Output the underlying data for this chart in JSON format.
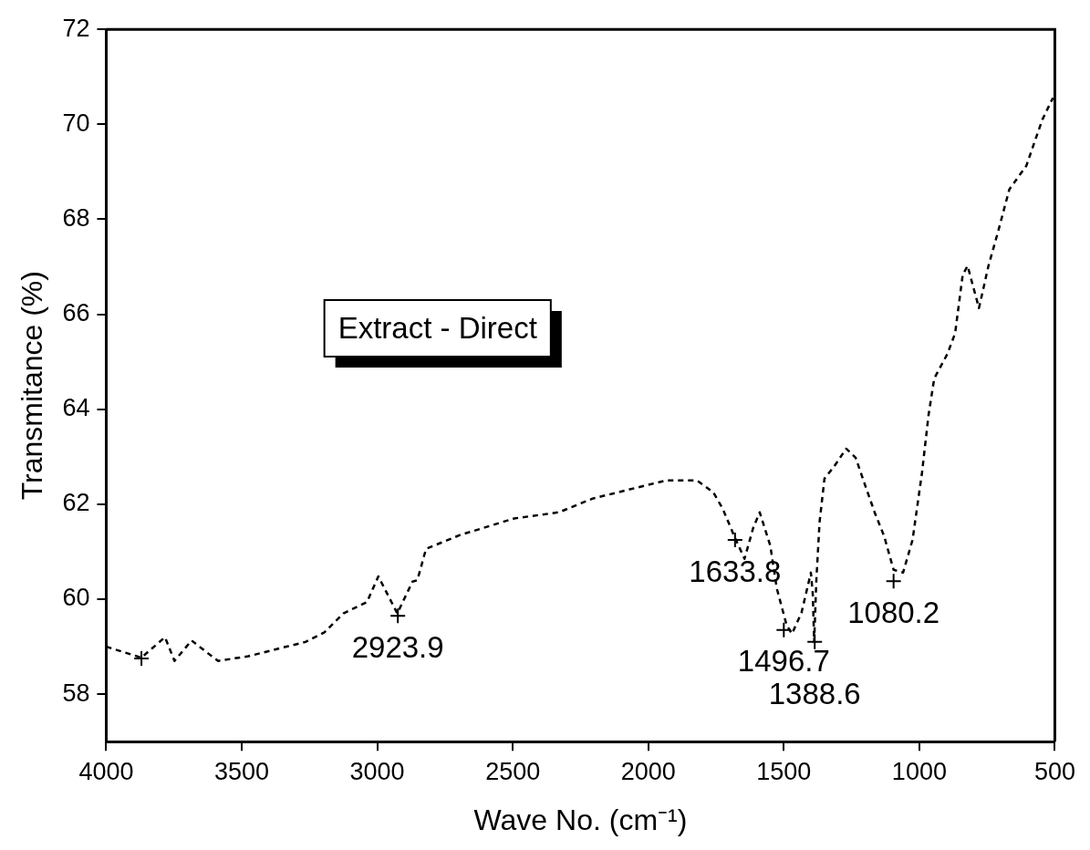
{
  "chart_data": {
    "type": "line",
    "xlabel": "Wave No. (cm⁻¹)",
    "ylabel": "Transmitance (%)",
    "xlim": [
      4000,
      500
    ],
    "xticks": [
      4000,
      3500,
      3000,
      2500,
      2000,
      1500,
      1000,
      500
    ],
    "ylim": [
      57,
      72
    ],
    "yticks": [
      58,
      60,
      62,
      64,
      66,
      68,
      70,
      72
    ],
    "grid": false,
    "line_style": "dashed",
    "series": [
      {
        "color": "#000000",
        "marker": "none",
        "x": [
          4000,
          3870,
          3783,
          3748,
          3685,
          3622,
          3587,
          3475,
          3335,
          3265,
          3195,
          3125,
          3038,
          2996,
          2926,
          2870,
          2852,
          2820,
          2695,
          2495,
          2330,
          2205,
          1935,
          1820,
          1760,
          1725,
          1680,
          1645,
          1613,
          1589,
          1550,
          1526,
          1490,
          1470,
          1435,
          1400,
          1393,
          1388,
          1380,
          1368,
          1350,
          1315,
          1270,
          1235,
          1200,
          1165,
          1130,
          1095,
          1060,
          1025,
          990,
          966,
          945,
          896,
          868,
          840,
          822,
          780,
          745,
          710,
          668,
          605,
          570,
          546,
          507
        ],
        "values": [
          59.0,
          58.77,
          59.2,
          58.7,
          59.13,
          58.85,
          58.7,
          58.8,
          59.0,
          59.1,
          59.3,
          59.7,
          59.94,
          60.48,
          59.7,
          60.37,
          60.4,
          61.06,
          61.35,
          61.7,
          61.83,
          62.12,
          62.5,
          62.5,
          62.25,
          61.9,
          61.29,
          60.85,
          61.5,
          61.83,
          61.13,
          60.23,
          59.46,
          59.27,
          59.71,
          60.56,
          60.1,
          59.1,
          60.4,
          61.63,
          62.54,
          62.79,
          63.17,
          62.98,
          62.4,
          61.83,
          61.33,
          60.62,
          60.56,
          61.25,
          62.67,
          63.88,
          64.65,
          65.17,
          65.6,
          66.83,
          67.02,
          66.13,
          67.02,
          67.73,
          68.63,
          69.13,
          69.71,
          70.1,
          70.56
        ]
      },
      {
        "type": "scatter",
        "color": "#000000",
        "marker": "cross",
        "x": [
          3870,
          2924,
          1680,
          1500,
          1386,
          1095
        ],
        "values": [
          58.75,
          59.65,
          61.25,
          59.35,
          59.1,
          60.38
        ]
      }
    ],
    "annotations": [
      "Extract - Direct",
      {
        "text": "2923.9",
        "x": 2924,
        "y": 59.65
      },
      {
        "text": "1633.8",
        "x": 1680,
        "y": 61.25
      },
      {
        "text": "1496.7",
        "x": 1500,
        "y": 59.35
      },
      {
        "text": "1388.6",
        "x": 1386,
        "y": 59.1
      },
      {
        "text": "1080.2",
        "x": 1095,
        "y": 60.38
      }
    ]
  }
}
